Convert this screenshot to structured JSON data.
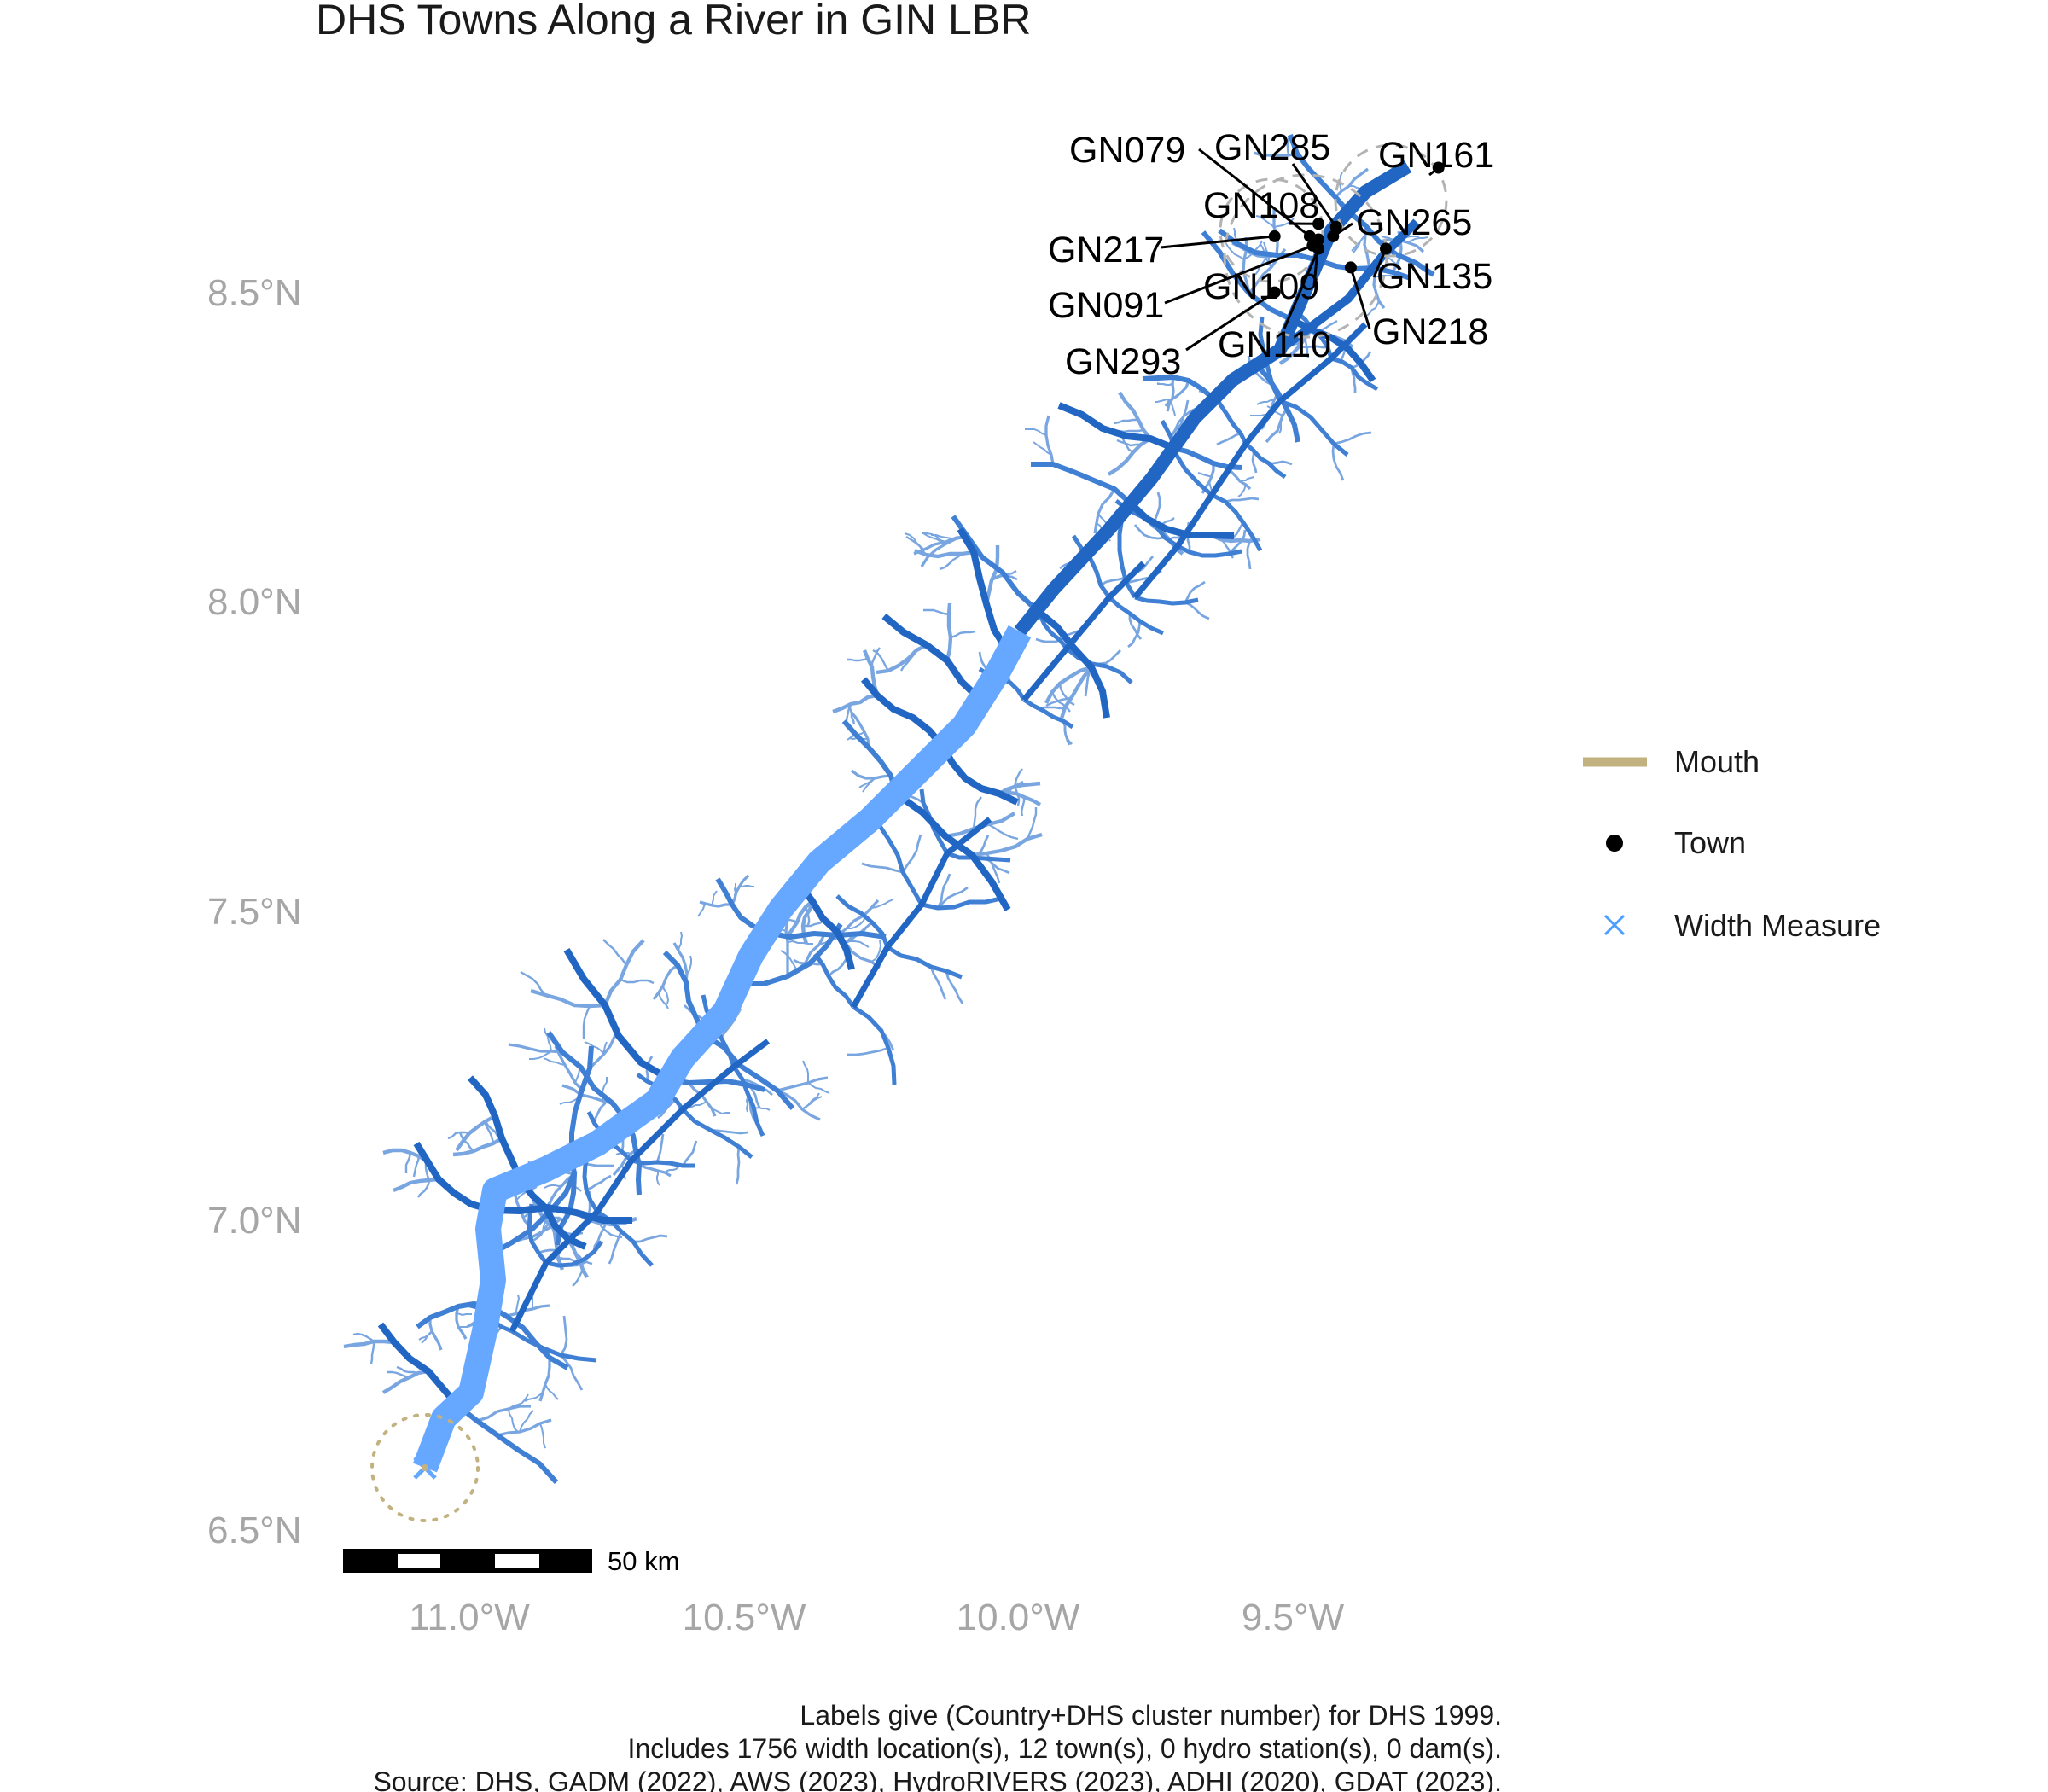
{
  "title": "DHS Towns Along a River in GIN LBR",
  "colors": {
    "main_river": "#66a8ff",
    "trib_major": "#2266c4",
    "trib_mid": "#3f7fd4",
    "trib_minor": "#79a6e0",
    "mouth": "#c2b280",
    "town": "#000000",
    "width_measure": "#4d9fff",
    "axis_text": "#a6a6a6",
    "buffer_circle": "#b3b3b3"
  },
  "axes": {
    "y_labels": [
      "8.5°N",
      "8.0°N",
      "7.5°N",
      "7.0°N",
      "6.5°N"
    ],
    "x_labels": [
      "11.0°W",
      "10.5°W",
      "10.0°W",
      "9.5°W"
    ]
  },
  "map_data": {
    "lon_range": [
      -11.4,
      -9.3
    ],
    "lat_range": [
      6.44,
      8.74
    ],
    "mouth": {
      "lon": -11.08,
      "lat": 6.6
    },
    "towns": [
      {
        "id": "GN079",
        "lon": -9.57,
        "lat": 8.58
      },
      {
        "id": "GN285",
        "lon": -9.525,
        "lat": 8.595
      },
      {
        "id": "GN161",
        "lon": -9.35,
        "lat": 8.69
      },
      {
        "id": "GN108",
        "lon": -9.555,
        "lat": 8.6
      },
      {
        "id": "GN265",
        "lon": -9.53,
        "lat": 8.58
      },
      {
        "id": "GN217",
        "lon": -9.63,
        "lat": 8.58
      },
      {
        "id": "GN135",
        "lon": -9.44,
        "lat": 8.56
      },
      {
        "id": "GN091",
        "lon": -9.565,
        "lat": 8.565
      },
      {
        "id": "GN109",
        "lon": -9.555,
        "lat": 8.575
      },
      {
        "id": "GN218",
        "lon": -9.5,
        "lat": 8.53
      },
      {
        "id": "GN110",
        "lon": -9.555,
        "lat": 8.56
      },
      {
        "id": "GN293",
        "lon": -9.63,
        "lat": 8.49
      }
    ],
    "counts": {
      "width_locations": 1756,
      "towns": 12,
      "hydro_stations": 0,
      "dams": 0
    }
  },
  "legend": {
    "items": [
      {
        "label": "Mouth",
        "symbol": "line"
      },
      {
        "label": "Town",
        "symbol": "dot"
      },
      {
        "label": "Width Measure",
        "symbol": "cross"
      }
    ]
  },
  "scale_bar": {
    "label": "50 km"
  },
  "caption": {
    "line1": "Labels give (Country+DHS cluster number) for DHS 1999.",
    "line2": "Includes 1756 width location(s), 12 town(s), 0 hydro station(s), 0 dam(s).",
    "line3": "Source: DHS, GADM (2022), AWS (2023), HydroRIVERS (2023), ADHI (2020), GDAT (2023)."
  }
}
